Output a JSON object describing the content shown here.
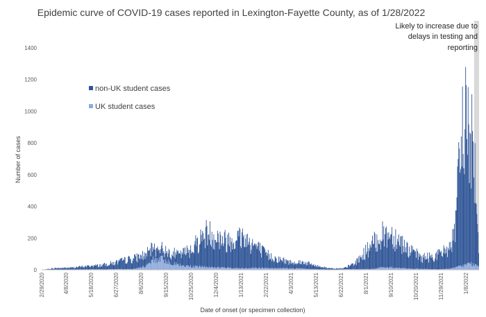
{
  "chart_data": {
    "type": "bar",
    "stacked": true,
    "title": "Epidemic curve of COVID-19 cases reported in Lexington-Fayette County, as of 1/28/2022",
    "xlabel": "Date of onset (or specimen collection)",
    "ylabel": "Number of cases",
    "ylim": [
      0,
      1400
    ],
    "yticks": [
      0,
      200,
      400,
      600,
      800,
      1000,
      1200,
      1400
    ],
    "xlim": [
      "2/29/2020",
      "1/28/2022"
    ],
    "x_tick_labels_readable": [
      "2/29/2020",
      "4/8/2020",
      "5/18/2020",
      "6/27/2020",
      "8/6/2020",
      "9/15/2020",
      "10/25/2020",
      "12/4/2020",
      "1/13/2021",
      "2/22/2021",
      "4/3/2021",
      "5/13/2021",
      "6/22/2021",
      "8/1/2021",
      "9/10/2021",
      "10/20/2021",
      "11/29/2021",
      "1/8/2022"
    ],
    "legend": {
      "placement": "left-middle",
      "entries": [
        "non-UK student cases",
        "UK student cases"
      ]
    },
    "annotation": {
      "lines": [
        "Likely to increase due to",
        "delays in testing and",
        "reporting"
      ],
      "shaded_from": "1/21/2022"
    },
    "colors": {
      "non_uk": "#2f5597",
      "uk": "#8faadc",
      "shade": "#d9d9d9"
    },
    "series": [
      {
        "name": "non-UK student cases",
        "color": "#2f5597",
        "x": [
          "2/29/2020",
          "3/21/2020",
          "4/15/2020",
          "5/10/2020",
          "6/1/2020",
          "6/25/2020",
          "7/15/2020",
          "8/5/2020",
          "8/25/2020",
          "9/15/2020",
          "10/5/2020",
          "10/25/2020",
          "11/10/2020",
          "11/20/2020",
          "12/5/2020",
          "12/20/2020",
          "1/5/2021",
          "1/15/2021",
          "2/1/2021",
          "2/20/2021",
          "3/10/2021",
          "4/1/2021",
          "4/25/2021",
          "5/15/2021",
          "6/5/2021",
          "6/25/2021",
          "7/15/2021",
          "8/5/2021",
          "8/25/2021",
          "9/10/2021",
          "9/25/2021",
          "10/10/2021",
          "10/30/2021",
          "11/15/2021",
          "12/1/2021",
          "12/15/2021",
          "12/22/2021",
          "12/28/2021",
          "1/3/2022",
          "1/8/2022",
          "1/14/2022",
          "1/20/2022",
          "1/25/2022",
          "1/28/2022"
        ],
        "values": [
          0,
          10,
          12,
          20,
          25,
          40,
          60,
          70,
          75,
          60,
          65,
          110,
          180,
          220,
          190,
          170,
          190,
          200,
          150,
          90,
          60,
          40,
          40,
          20,
          8,
          5,
          40,
          130,
          200,
          210,
          170,
          110,
          70,
          80,
          100,
          150,
          250,
          650,
          850,
          1000,
          700,
          800,
          300,
          150
        ]
      },
      {
        "name": "UK student cases",
        "color": "#8faadc",
        "x": [
          "2/29/2020",
          "7/25/2020",
          "8/15/2020",
          "8/25/2020",
          "9/5/2020",
          "9/20/2020",
          "10/10/2020",
          "11/5/2020",
          "12/1/2020",
          "1/10/2021",
          "2/5/2021",
          "3/1/2021",
          "4/15/2021",
          "5/5/2021",
          "6/1/2021",
          "8/10/2021",
          "8/25/2021",
          "9/10/2021",
          "10/1/2021",
          "11/1/2021",
          "11/25/2021",
          "12/15/2021",
          "1/2/2022",
          "1/15/2022",
          "1/28/2022"
        ],
        "values": [
          0,
          5,
          25,
          60,
          70,
          50,
          25,
          20,
          15,
          10,
          12,
          10,
          8,
          4,
          2,
          5,
          15,
          15,
          8,
          5,
          3,
          8,
          25,
          40,
          20
        ]
      }
    ]
  }
}
